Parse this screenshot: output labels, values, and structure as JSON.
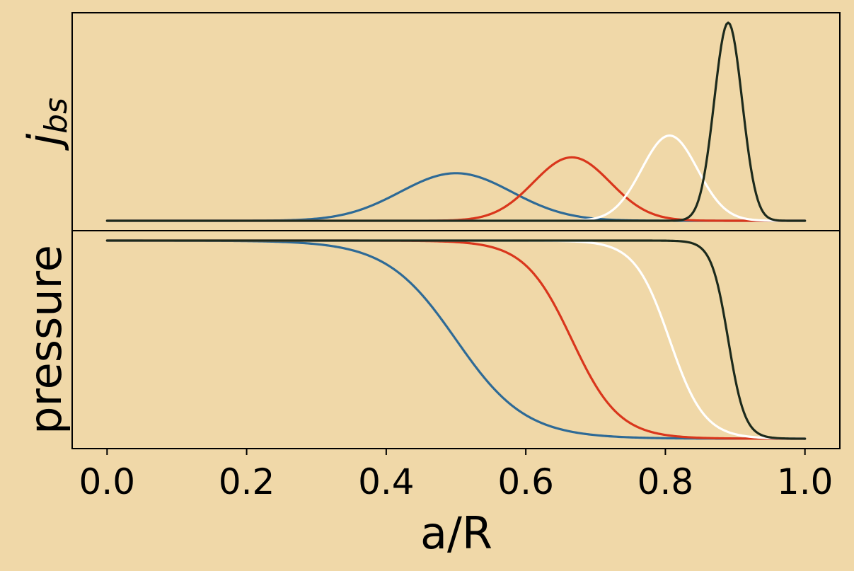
{
  "colors": {
    "background": "#f0d8a8",
    "series": [
      "#2e6a96",
      "#d9361c",
      "#ffffff",
      "#1c2a1c"
    ]
  },
  "chart_data": [
    {
      "type": "line",
      "panel": "top",
      "title": "",
      "ylabel": "j_bs",
      "ylabel_main": "j",
      "ylabel_sub": "bs",
      "xlim": [
        -0.05,
        1.05
      ],
      "ylim": [
        -0.05,
        1.05
      ],
      "yticks_shown": false,
      "grid": false,
      "shape": "gaussian peak",
      "series": [
        {
          "center": 0.5,
          "width": 0.08,
          "peak": 0.24
        },
        {
          "center": 0.666,
          "width": 0.055,
          "peak": 0.32
        },
        {
          "center": 0.806,
          "width": 0.04,
          "peak": 0.43
        },
        {
          "center": 0.89,
          "width": 0.02,
          "peak": 1.0
        }
      ]
    },
    {
      "type": "line",
      "panel": "bottom",
      "title": "",
      "ylabel": "pressure",
      "xlabel": "a/R",
      "xlim": [
        -0.05,
        1.05
      ],
      "ylim": [
        -0.05,
        1.05
      ],
      "yticks_shown": false,
      "xticks": [
        "0.0",
        "0.2",
        "0.4",
        "0.6",
        "0.8",
        "1.0"
      ],
      "xtick_values": [
        0.0,
        0.2,
        0.4,
        0.6,
        0.8,
        1.0
      ],
      "grid": false,
      "shape": "sigmoid step down",
      "series": [
        {
          "center": 0.5,
          "width": 0.05,
          "high": 1.0,
          "low": 0.0
        },
        {
          "center": 0.666,
          "width": 0.034,
          "high": 1.0,
          "low": 0.0
        },
        {
          "center": 0.806,
          "width": 0.025,
          "high": 1.0,
          "low": 0.0
        },
        {
          "center": 0.89,
          "width": 0.012,
          "high": 1.0,
          "low": 0.0
        }
      ]
    }
  ]
}
